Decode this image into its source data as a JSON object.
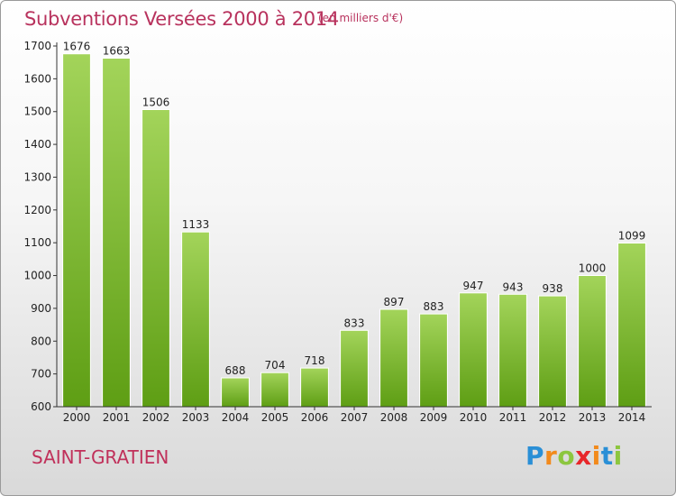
{
  "header": {
    "title": "Subventions Versées 2000 à 2014",
    "subtitle": "(en milliers d'€)"
  },
  "footer": {
    "commune": "SAINT-GRATIEN",
    "logo": {
      "letters": [
        "P",
        "r",
        "o",
        "x",
        "i",
        "t",
        "i"
      ],
      "colors": [
        "#2a8fd6",
        "#f28a1c",
        "#8cc63f",
        "#e8262a",
        "#f28a1c",
        "#2a8fd6",
        "#8cc63f"
      ]
    }
  },
  "chart_data": {
    "type": "bar",
    "categories": [
      "2000",
      "2001",
      "2002",
      "2003",
      "2004",
      "2005",
      "2006",
      "2007",
      "2008",
      "2009",
      "2010",
      "2011",
      "2012",
      "2013",
      "2014"
    ],
    "values": [
      1676,
      1663,
      1506,
      1133,
      688,
      704,
      718,
      833,
      897,
      883,
      947,
      943,
      938,
      1000,
      1099
    ],
    "data_labels": [
      "1676",
      "1663",
      "1506",
      "1133",
      "688",
      "704",
      "718",
      "833",
      "897",
      "883",
      "947",
      "943",
      "938",
      "1000",
      "1099"
    ],
    "ylim": [
      600,
      1700
    ],
    "yticks": [
      600,
      700,
      800,
      900,
      1000,
      1100,
      1200,
      1300,
      1400,
      1500,
      1600,
      1700
    ],
    "grid": false,
    "colors": {
      "bar_top": "#a3d45a",
      "bar_bottom": "#5e9e14"
    }
  }
}
